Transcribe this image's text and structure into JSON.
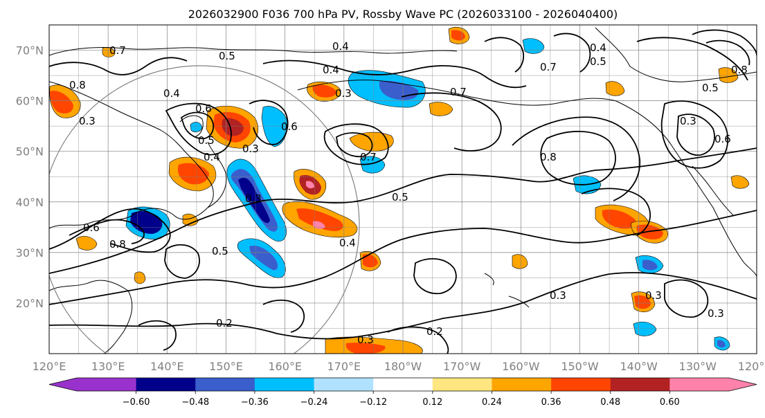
{
  "title": "2026032900 F036 700 hPa PV, Rossby Wave PC (2026033100 - 2026040400)",
  "lat_labels": [
    "70°N",
    "60°N",
    "50°N",
    "40°N",
    "30°N",
    "20°N"
  ],
  "lat_values": [
    70,
    60,
    50,
    40,
    30,
    20
  ],
  "lon_labels": [
    "120°E",
    "130°E",
    "140°E",
    "150°E",
    "160°E",
    "170°E",
    "180°W",
    "170°W",
    "160°W",
    "150°W",
    "140°W",
    "130°W",
    "120°W"
  ],
  "lon_values": [
    120,
    130,
    140,
    150,
    160,
    170,
    180,
    190,
    200,
    210,
    220,
    230,
    240
  ],
  "map_extent": {
    "lon_min": 120,
    "lon_max": 240,
    "lat_min": 10,
    "lat_max": 75
  },
  "colorbar": {
    "ticks": [
      "−0.60",
      "−0.48",
      "−0.36",
      "−0.24",
      "−0.12",
      "0.12",
      "0.24",
      "0.36",
      "0.48",
      "0.60"
    ],
    "colors": [
      "#9932cc",
      "#00008b",
      "#3a5fcd",
      "#00bfff",
      "#b0e2ff",
      "#ffffff",
      "#ffe680",
      "#ffa500",
      "#ff4500",
      "#b22222",
      "#ff82ab"
    ]
  },
  "contour_labels": [
    {
      "text": "0.7"
    },
    {
      "text": "0.8"
    },
    {
      "text": "0.3"
    },
    {
      "text": "0.4"
    },
    {
      "text": "0.5"
    },
    {
      "text": "0.6"
    },
    {
      "text": "0.6"
    },
    {
      "text": "0.5"
    },
    {
      "text": "0.3"
    },
    {
      "text": "0.4"
    },
    {
      "text": "0.4"
    },
    {
      "text": "0.3"
    },
    {
      "text": "0.7"
    },
    {
      "text": "0.7"
    },
    {
      "text": "0.4"
    },
    {
      "text": "0.5"
    },
    {
      "text": "0.7"
    },
    {
      "text": "0.5"
    },
    {
      "text": "0.8"
    },
    {
      "text": "0.3"
    },
    {
      "text": "0.8"
    },
    {
      "text": "0.6"
    },
    {
      "text": "0.4"
    },
    {
      "text": "0.5"
    },
    {
      "text": "0.3"
    },
    {
      "text": "0.3"
    },
    {
      "text": "0.2"
    },
    {
      "text": "0.3"
    },
    {
      "text": "0.2"
    },
    {
      "text": "0.3"
    },
    {
      "text": "0.4"
    },
    {
      "text": "0.3"
    },
    {
      "text": "0.6"
    },
    {
      "text": "0.8"
    },
    {
      "text": "0.5"
    }
  ],
  "colors": {
    "contour": "#000000",
    "grid": "#808080",
    "coast": "#000000"
  }
}
